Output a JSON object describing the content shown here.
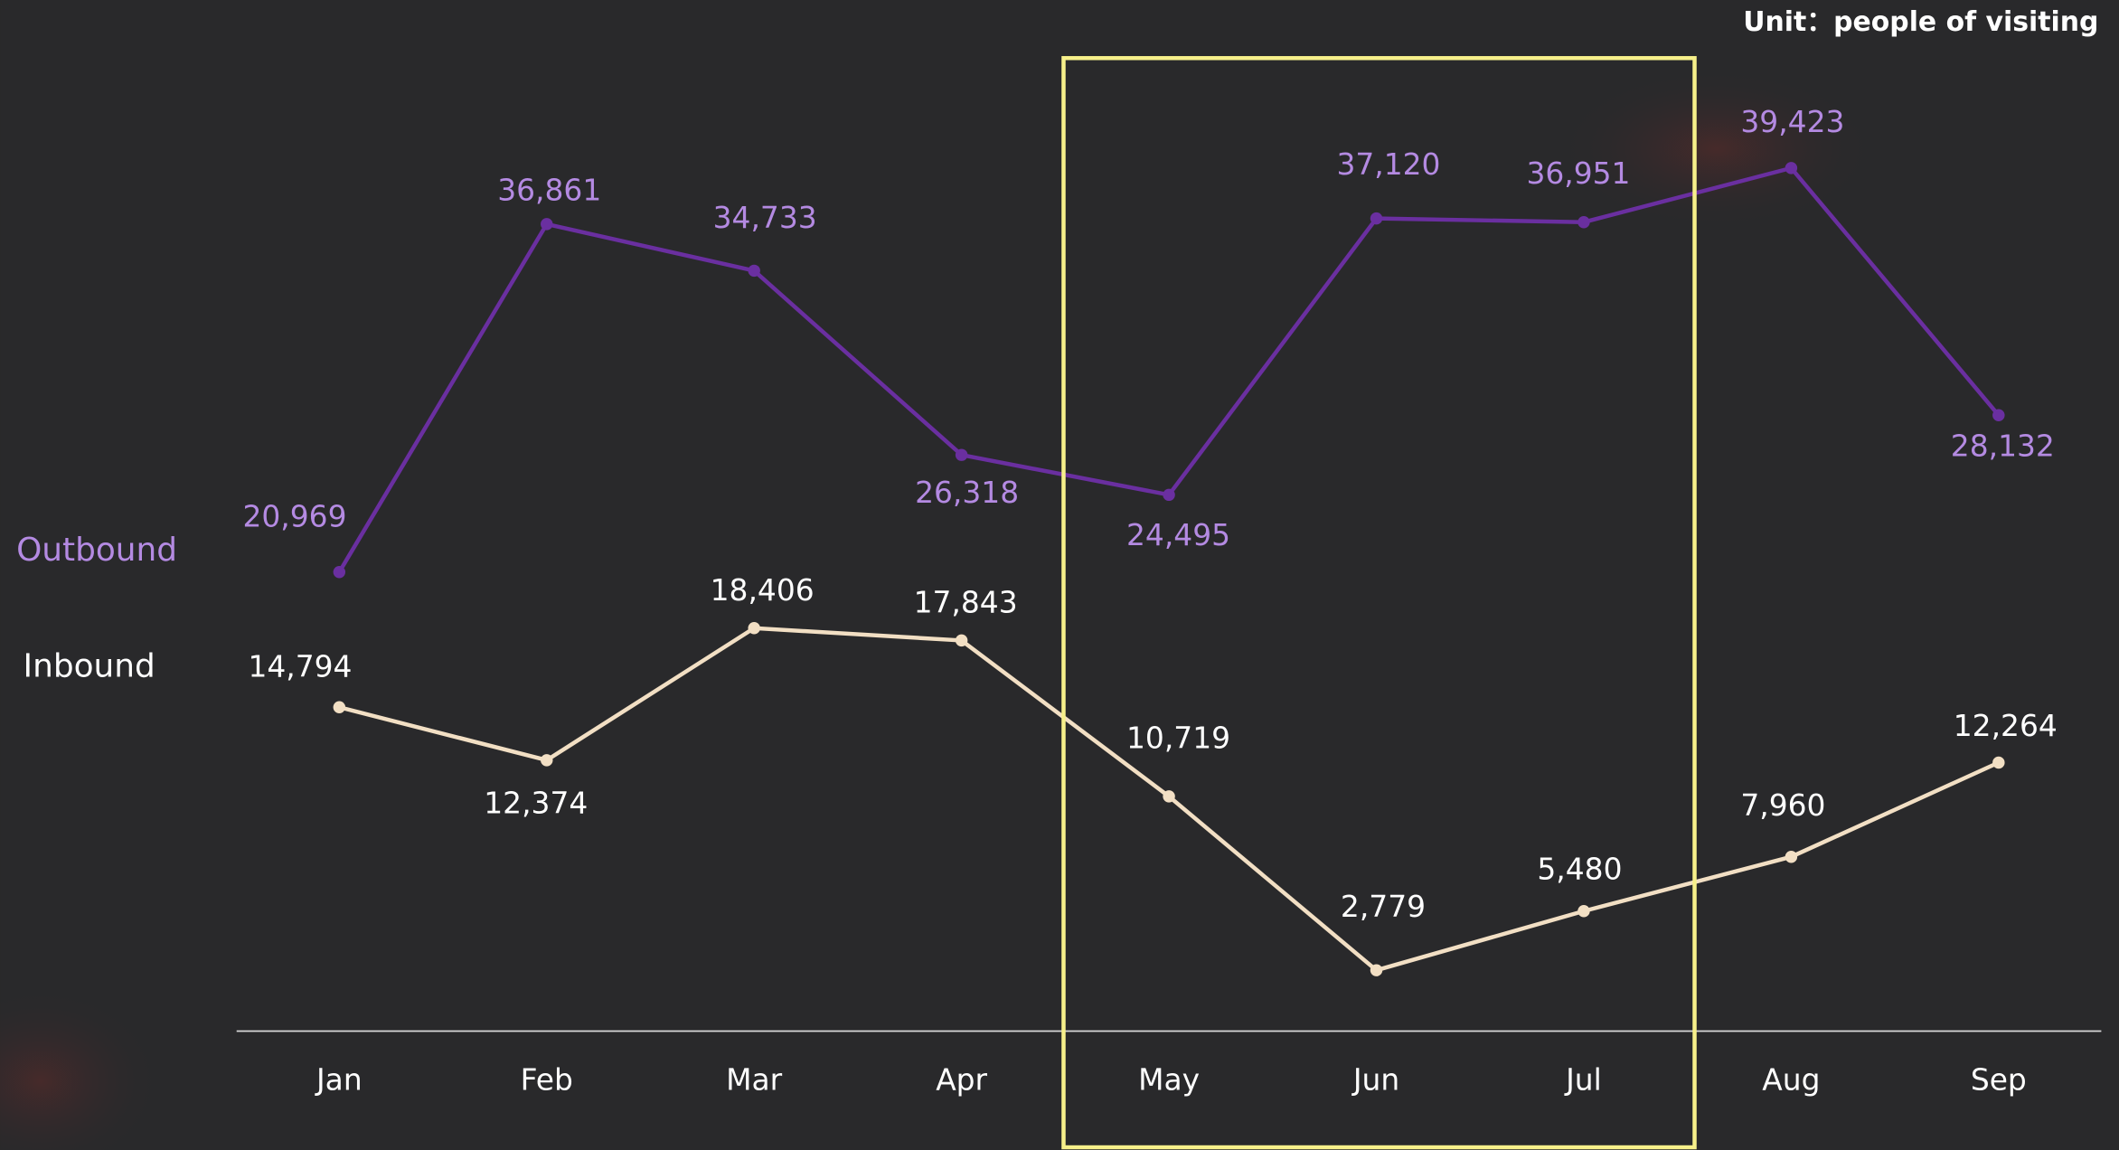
{
  "chart_data": {
    "type": "line",
    "subtitle": "Unit：people of visiting",
    "categories": [
      "Jan",
      "Feb",
      "Mar",
      "Apr",
      "May",
      "Jun",
      "Jul",
      "Aug",
      "Sep"
    ],
    "series": [
      {
        "name": "Outbound",
        "color": "#6a2fa0",
        "label_color": "#b48ae2",
        "values": [
          20969,
          36861,
          34733,
          26318,
          24495,
          37120,
          36951,
          39423,
          28132
        ],
        "value_labels": [
          "20,969",
          "36,861",
          "34,733",
          "26,318",
          "24,495",
          "37,120",
          "36,951",
          "39,423",
          "28,132"
        ]
      },
      {
        "name": "Inbound",
        "color": "#f2dfc4",
        "label_color": "#ffffff",
        "values": [
          14794,
          12374,
          18406,
          17843,
          10719,
          2779,
          5480,
          7960,
          12264
        ],
        "value_labels": [
          "14,794",
          "12,374",
          "18,406",
          "17,843",
          "10,719",
          "2,779",
          "5,480",
          "7,960",
          "12,264"
        ]
      }
    ],
    "ylim": [
      0,
      45000
    ],
    "grid": false
  }
}
